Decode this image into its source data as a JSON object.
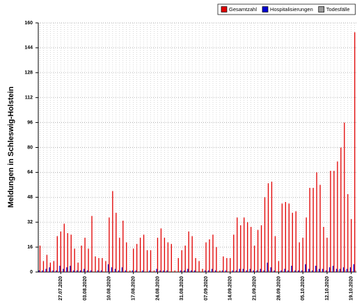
{
  "chart_data": {
    "type": "bar",
    "y_label": "Meldungen in Schleswig-Holstein",
    "categories": [
      null,
      null,
      null,
      null,
      null,
      null,
      "27.07.2020",
      null,
      null,
      null,
      null,
      null,
      null,
      "03.08.2020",
      null,
      null,
      null,
      null,
      null,
      null,
      "10.08.2020",
      null,
      null,
      null,
      null,
      null,
      null,
      "17.08.2020",
      null,
      null,
      null,
      null,
      null,
      null,
      "24.08.2020",
      null,
      null,
      null,
      null,
      null,
      null,
      "31.08.2020",
      null,
      null,
      null,
      null,
      null,
      null,
      "07.09.2020",
      null,
      null,
      null,
      null,
      null,
      null,
      "14.09.2020",
      null,
      null,
      null,
      null,
      null,
      null,
      "21.09.2020",
      null,
      null,
      null,
      null,
      null,
      null,
      "28.09.2020",
      null,
      null,
      null,
      null,
      null,
      null,
      "05.10.2020",
      null,
      null,
      null,
      null,
      null,
      null,
      "12.10.2020",
      null,
      null,
      null,
      null,
      null,
      null,
      "19.10.2020",
      null
    ],
    "series": [
      {
        "name": "Gesamtzahl",
        "color": "#e00000",
        "values": [
          17,
          7,
          11,
          6,
          7,
          23,
          26,
          31,
          25,
          24,
          15,
          6,
          17,
          22,
          15,
          36,
          10,
          9,
          9,
          7,
          35,
          52,
          38,
          22,
          33,
          19,
          1,
          15,
          18,
          22,
          24,
          14,
          14,
          1,
          22,
          28,
          22,
          19,
          18,
          1,
          9,
          14,
          17,
          26,
          23,
          9,
          7,
          2,
          19,
          21,
          24,
          16,
          1,
          10,
          9,
          9,
          24,
          35,
          30,
          35,
          32,
          29,
          17,
          27,
          30,
          48,
          57,
          58,
          23,
          7,
          44,
          45,
          44,
          38,
          39,
          19,
          22,
          35,
          54,
          54,
          64,
          56,
          29,
          22,
          65,
          65,
          71,
          80,
          96,
          50,
          34,
          154
        ]
      },
      {
        "name": "Hospitalisierungen",
        "color": "#0000d0",
        "values": [
          1,
          1,
          2,
          3,
          1,
          1,
          4,
          2,
          3,
          4,
          1,
          1,
          1,
          2,
          1,
          1,
          0,
          1,
          1,
          0,
          5,
          3,
          2,
          1,
          3,
          1,
          0,
          1,
          1,
          0,
          1,
          0,
          1,
          0,
          2,
          1,
          1,
          1,
          0,
          0,
          0,
          1,
          1,
          2,
          1,
          1,
          0,
          0,
          1,
          1,
          2,
          1,
          0,
          1,
          1,
          0,
          1,
          1,
          2,
          2,
          1,
          2,
          1,
          1,
          2,
          1,
          6,
          3,
          1,
          0,
          1,
          2,
          1,
          4,
          1,
          1,
          1,
          5,
          2,
          1,
          4,
          2,
          2,
          1,
          3,
          4,
          2,
          2,
          3,
          2,
          3,
          5
        ]
      },
      {
        "name": "Todesfälle",
        "color": "#999999",
        "values": [
          0,
          0,
          0,
          0,
          0,
          0,
          0,
          0,
          0,
          0,
          0,
          0,
          0,
          0,
          0,
          0,
          0,
          0,
          0,
          0,
          0,
          0,
          0,
          0,
          0,
          0,
          0,
          0,
          0,
          0,
          0,
          0,
          0,
          0,
          0,
          0,
          0,
          0,
          0,
          0,
          0,
          0,
          0,
          0,
          0,
          0,
          0,
          0,
          0,
          0,
          0,
          0,
          0,
          0,
          0,
          0,
          0,
          0,
          0,
          0,
          0,
          0,
          0,
          0,
          0,
          0,
          1,
          0,
          0,
          0,
          0,
          0,
          0,
          0,
          0,
          0,
          0,
          0,
          0,
          0,
          1,
          0,
          0,
          0,
          0,
          0,
          1,
          0,
          1,
          0,
          0,
          1
        ]
      }
    ],
    "ylim": [
      0,
      160
    ],
    "yticks": [
      0,
      16,
      32,
      48,
      64,
      80,
      96,
      112,
      128,
      144,
      160
    ],
    "grid": true
  }
}
